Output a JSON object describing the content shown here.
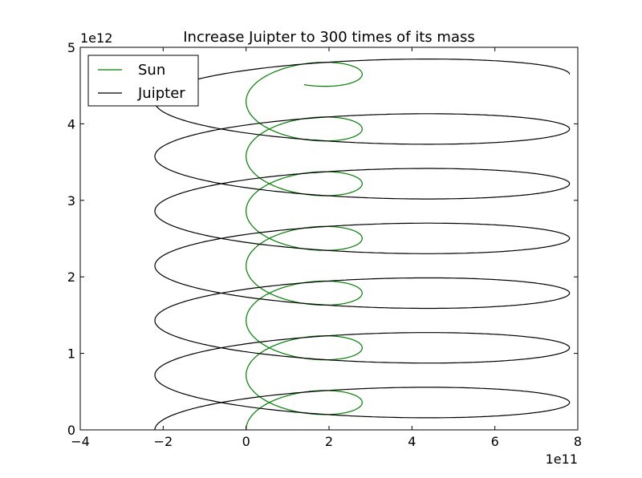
{
  "chart_data": {
    "type": "line",
    "title": "Increase Juipter to 300 times of its mass",
    "xlabel": "",
    "ylabel": "",
    "x_multiplier_label": "1e11",
    "y_multiplier_label": "1e12",
    "xlim": [
      -4,
      8
    ],
    "ylim": [
      0,
      5
    ],
    "xticks": [
      -4,
      -2,
      0,
      2,
      4,
      6,
      8
    ],
    "yticks": [
      0,
      1,
      2,
      3,
      4,
      5
    ],
    "xtick_labels": [
      "−4",
      "−2",
      "0",
      "2",
      "4",
      "6",
      "8"
    ],
    "ytick_labels": [
      "0",
      "1",
      "2",
      "3",
      "4",
      "5"
    ],
    "grid": false,
    "legend_position": "top-left",
    "series": [
      {
        "name": "Sun",
        "color": "#008000",
        "model": {
          "x_center": 1.4,
          "x_amplitude": 1.4,
          "y_step": 0.715,
          "y_amplitude": 0.315,
          "t_end": 6.75
        }
      },
      {
        "name": "Juipter",
        "color": "#000000",
        "model": {
          "x_center": 2.8,
          "x_amplitude": 5.0,
          "y_step": 0.715,
          "y_amplitude": 0.36,
          "t_end": 6.5
        }
      }
    ]
  }
}
